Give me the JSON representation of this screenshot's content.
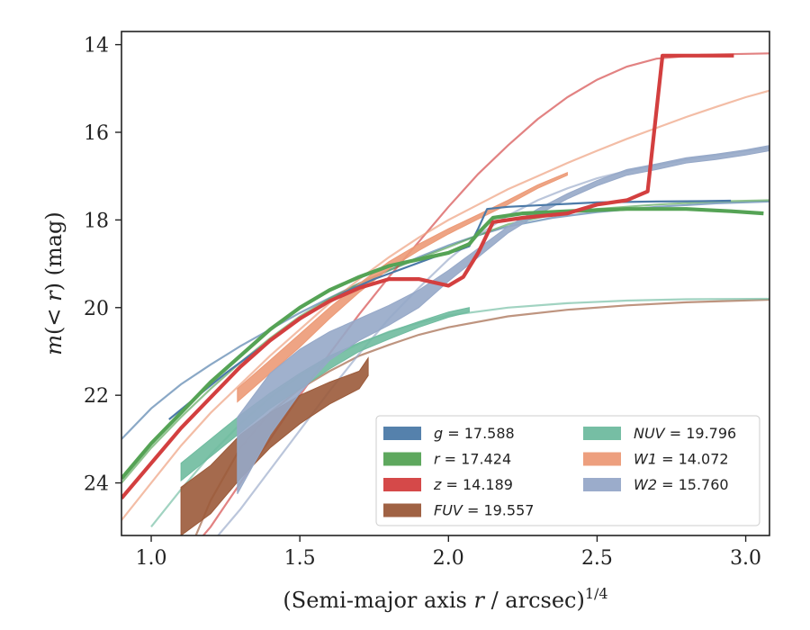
{
  "chart_data": {
    "type": "line",
    "xlabel": "(Semi-major axis r / arcsec)^1/4",
    "xlabel_parts": {
      "pre": "(Semi-major axis ",
      "var": "r",
      "post": " / arcsec)",
      "sup": "1/4"
    },
    "ylabel": "m(< r) (mag)",
    "ylabel_parts": {
      "pre": "m",
      "open": "(",
      "var": "< r",
      "close": ")",
      "post": " (mag)"
    },
    "xlim": [
      0.9,
      3.08
    ],
    "ylim": [
      25.2,
      13.7
    ],
    "y_inverted": true,
    "x_ticks": [
      1.0,
      1.5,
      2.0,
      2.5,
      3.0
    ],
    "x_tick_labels": [
      "1.0",
      "1.5",
      "2.0",
      "2.5",
      "3.0"
    ],
    "y_ticks": [
      14,
      16,
      18,
      20,
      22,
      24
    ],
    "y_tick_labels": [
      "14",
      "16",
      "18",
      "20",
      "22",
      "24"
    ],
    "grid": false,
    "legend_placement": "lower-right",
    "legend_columns": 2,
    "series": [
      {
        "name": "g = 17.588",
        "color": "#4c7aa8",
        "data": [
          [
            1.06,
            22.55
          ],
          [
            1.15,
            22.05
          ],
          [
            1.25,
            21.5
          ],
          [
            1.35,
            21.0
          ],
          [
            1.45,
            20.5
          ],
          [
            1.55,
            20.05
          ],
          [
            1.65,
            19.65
          ],
          [
            1.75,
            19.35
          ],
          [
            1.85,
            19.1
          ],
          [
            1.95,
            18.85
          ],
          [
            2.03,
            18.7
          ],
          [
            2.07,
            18.6
          ],
          [
            2.1,
            18.2
          ],
          [
            2.13,
            17.75
          ],
          [
            2.2,
            17.7
          ],
          [
            2.35,
            17.65
          ],
          [
            2.5,
            17.6
          ],
          [
            2.7,
            17.58
          ],
          [
            2.85,
            17.57
          ],
          [
            2.95,
            17.56
          ]
        ],
        "model": [
          [
            0.9,
            23.0
          ],
          [
            1.0,
            22.3
          ],
          [
            1.1,
            21.75
          ],
          [
            1.2,
            21.3
          ],
          [
            1.3,
            20.88
          ],
          [
            1.4,
            20.5
          ],
          [
            1.5,
            20.12
          ],
          [
            1.6,
            19.78
          ],
          [
            1.7,
            19.45
          ],
          [
            1.8,
            19.15
          ],
          [
            1.9,
            18.85
          ],
          [
            2.0,
            18.58
          ],
          [
            2.1,
            18.35
          ],
          [
            2.2,
            18.15
          ],
          [
            2.35,
            17.95
          ],
          [
            2.5,
            17.82
          ],
          [
            2.7,
            17.7
          ],
          [
            2.9,
            17.62
          ],
          [
            3.08,
            17.58
          ]
        ]
      },
      {
        "name": "r = 17.424",
        "color": "#55a355",
        "data": [
          [
            0.9,
            23.9
          ],
          [
            1.0,
            23.1
          ],
          [
            1.1,
            22.4
          ],
          [
            1.2,
            21.7
          ],
          [
            1.3,
            21.1
          ],
          [
            1.4,
            20.5
          ],
          [
            1.5,
            20.0
          ],
          [
            1.6,
            19.6
          ],
          [
            1.7,
            19.3
          ],
          [
            1.8,
            19.05
          ],
          [
            1.9,
            18.9
          ],
          [
            2.0,
            18.75
          ],
          [
            2.07,
            18.55
          ],
          [
            2.1,
            18.3
          ],
          [
            2.15,
            17.95
          ],
          [
            2.25,
            17.85
          ],
          [
            2.4,
            17.8
          ],
          [
            2.6,
            17.75
          ],
          [
            2.8,
            17.75
          ],
          [
            2.95,
            17.8
          ],
          [
            3.06,
            17.85
          ]
        ],
        "model": [
          [
            0.9,
            24.0
          ],
          [
            1.0,
            23.2
          ],
          [
            1.1,
            22.5
          ],
          [
            1.2,
            21.85
          ],
          [
            1.3,
            21.25
          ],
          [
            1.4,
            20.7
          ],
          [
            1.5,
            20.2
          ],
          [
            1.6,
            19.8
          ],
          [
            1.7,
            19.45
          ],
          [
            1.8,
            19.15
          ],
          [
            1.9,
            18.88
          ],
          [
            2.0,
            18.62
          ],
          [
            2.1,
            18.35
          ],
          [
            2.2,
            18.1
          ],
          [
            2.35,
            17.88
          ],
          [
            2.5,
            17.75
          ],
          [
            2.7,
            17.65
          ],
          [
            2.9,
            17.58
          ],
          [
            3.08,
            17.55
          ]
        ]
      },
      {
        "name": "z = 14.189",
        "color": "#d33f3f",
        "data": [
          [
            0.9,
            24.35
          ],
          [
            1.0,
            23.55
          ],
          [
            1.1,
            22.75
          ],
          [
            1.2,
            22.05
          ],
          [
            1.3,
            21.35
          ],
          [
            1.4,
            20.75
          ],
          [
            1.5,
            20.25
          ],
          [
            1.6,
            19.85
          ],
          [
            1.7,
            19.55
          ],
          [
            1.8,
            19.35
          ],
          [
            1.9,
            19.35
          ],
          [
            2.0,
            19.5
          ],
          [
            2.05,
            19.3
          ],
          [
            2.1,
            18.75
          ],
          [
            2.15,
            18.05
          ],
          [
            2.25,
            17.95
          ],
          [
            2.4,
            17.85
          ],
          [
            2.5,
            17.65
          ],
          [
            2.6,
            17.55
          ],
          [
            2.67,
            17.35
          ],
          [
            2.72,
            14.25
          ],
          [
            2.85,
            14.25
          ],
          [
            2.96,
            14.25
          ]
        ],
        "model": [
          [
            1.1,
            25.8
          ],
          [
            1.2,
            25.0
          ],
          [
            1.3,
            24.0
          ],
          [
            1.4,
            23.0
          ],
          [
            1.5,
            22.0
          ],
          [
            1.6,
            21.05
          ],
          [
            1.7,
            20.15
          ],
          [
            1.8,
            19.3
          ],
          [
            1.9,
            18.5
          ],
          [
            2.0,
            17.7
          ],
          [
            2.1,
            16.95
          ],
          [
            2.2,
            16.3
          ],
          [
            2.3,
            15.7
          ],
          [
            2.4,
            15.2
          ],
          [
            2.5,
            14.8
          ],
          [
            2.6,
            14.5
          ],
          [
            2.7,
            14.32
          ],
          [
            2.85,
            14.23
          ],
          [
            3.08,
            14.2
          ]
        ]
      },
      {
        "name": "FUV = 19.557",
        "color": "#9b5a3a",
        "band": [
          [
            1.1,
            24.1,
            25.2
          ],
          [
            1.2,
            23.6,
            24.7
          ],
          [
            1.3,
            22.9,
            23.9
          ],
          [
            1.4,
            22.4,
            23.2
          ],
          [
            1.5,
            22.0,
            22.65
          ],
          [
            1.6,
            21.7,
            22.2
          ],
          [
            1.7,
            21.45,
            21.85
          ],
          [
            1.73,
            21.15,
            21.55
          ]
        ],
        "model": [
          [
            1.15,
            25.2
          ],
          [
            1.2,
            24.4
          ],
          [
            1.3,
            23.2
          ],
          [
            1.4,
            22.4
          ],
          [
            1.5,
            21.85
          ],
          [
            1.6,
            21.45
          ],
          [
            1.7,
            21.1
          ],
          [
            1.8,
            20.85
          ],
          [
            1.9,
            20.62
          ],
          [
            2.0,
            20.45
          ],
          [
            2.2,
            20.2
          ],
          [
            2.4,
            20.05
          ],
          [
            2.6,
            19.95
          ],
          [
            2.8,
            19.88
          ],
          [
            3.08,
            19.82
          ]
        ]
      },
      {
        "name": "NUV = 19.796",
        "color": "#6fbb9f",
        "band": [
          [
            1.1,
            23.55,
            23.95
          ],
          [
            1.2,
            23.0,
            23.4
          ],
          [
            1.3,
            22.45,
            22.85
          ],
          [
            1.4,
            21.95,
            22.3
          ],
          [
            1.5,
            21.5,
            21.85
          ],
          [
            1.6,
            21.1,
            21.4
          ],
          [
            1.7,
            20.8,
            21.0
          ],
          [
            1.8,
            20.55,
            20.72
          ],
          [
            1.9,
            20.32,
            20.45
          ],
          [
            2.0,
            20.1,
            20.22
          ],
          [
            2.07,
            20.0,
            20.1
          ]
        ],
        "model": [
          [
            1.0,
            25.0
          ],
          [
            1.1,
            24.15
          ],
          [
            1.2,
            23.35
          ],
          [
            1.3,
            22.65
          ],
          [
            1.4,
            22.05
          ],
          [
            1.5,
            21.55
          ],
          [
            1.6,
            21.15
          ],
          [
            1.7,
            20.82
          ],
          [
            1.8,
            20.55
          ],
          [
            1.9,
            20.35
          ],
          [
            2.0,
            20.18
          ],
          [
            2.2,
            20.0
          ],
          [
            2.4,
            19.9
          ],
          [
            2.6,
            19.84
          ],
          [
            2.8,
            19.81
          ],
          [
            3.08,
            19.8
          ]
        ]
      },
      {
        "name": "W1 = 14.072",
        "color": "#ec9a77",
        "band": [
          [
            1.29,
            21.85,
            22.15
          ],
          [
            1.4,
            21.2,
            21.5
          ],
          [
            1.5,
            20.6,
            20.9
          ],
          [
            1.6,
            20.0,
            20.25
          ],
          [
            1.7,
            19.45,
            19.65
          ],
          [
            1.8,
            18.95,
            19.12
          ],
          [
            1.9,
            18.55,
            18.7
          ],
          [
            2.0,
            18.2,
            18.32
          ],
          [
            2.1,
            17.88,
            17.98
          ],
          [
            2.2,
            17.55,
            17.65
          ],
          [
            2.3,
            17.2,
            17.28
          ],
          [
            2.4,
            16.92,
            16.98
          ]
        ],
        "model": [
          [
            0.9,
            24.85
          ],
          [
            1.0,
            24.0
          ],
          [
            1.1,
            23.15
          ],
          [
            1.2,
            22.4
          ],
          [
            1.3,
            21.75
          ],
          [
            1.4,
            21.1
          ],
          [
            1.5,
            20.5
          ],
          [
            1.6,
            19.9
          ],
          [
            1.7,
            19.35
          ],
          [
            1.8,
            18.85
          ],
          [
            1.9,
            18.4
          ],
          [
            2.0,
            18.0
          ],
          [
            2.1,
            17.65
          ],
          [
            2.2,
            17.3
          ],
          [
            2.3,
            17.0
          ],
          [
            2.4,
            16.7
          ],
          [
            2.5,
            16.42
          ],
          [
            2.6,
            16.15
          ],
          [
            2.7,
            15.9
          ],
          [
            2.8,
            15.65
          ],
          [
            2.9,
            15.42
          ],
          [
            3.0,
            15.2
          ],
          [
            3.08,
            15.05
          ]
        ]
      },
      {
        "name": "W2 = 15.760",
        "color": "#96a8c8",
        "band": [
          [
            1.29,
            22.5,
            24.25
          ],
          [
            1.4,
            21.5,
            22.9
          ],
          [
            1.5,
            20.95,
            21.95
          ],
          [
            1.6,
            20.55,
            21.2
          ],
          [
            1.7,
            20.25,
            20.75
          ],
          [
            1.8,
            19.95,
            20.4
          ],
          [
            1.9,
            19.6,
            20.0
          ],
          [
            2.0,
            19.15,
            19.4
          ],
          [
            2.1,
            18.65,
            18.85
          ],
          [
            2.2,
            18.15,
            18.3
          ],
          [
            2.3,
            17.75,
            17.88
          ],
          [
            2.4,
            17.4,
            17.52
          ],
          [
            2.5,
            17.1,
            17.22
          ],
          [
            2.6,
            16.85,
            16.98
          ],
          [
            2.7,
            16.72,
            16.85
          ],
          [
            2.8,
            16.58,
            16.7
          ],
          [
            2.9,
            16.5,
            16.62
          ],
          [
            3.0,
            16.4,
            16.52
          ],
          [
            3.08,
            16.3,
            16.42
          ]
        ],
        "model": [
          [
            1.2,
            25.4
          ],
          [
            1.3,
            24.6
          ],
          [
            1.4,
            23.7
          ],
          [
            1.5,
            22.8
          ],
          [
            1.6,
            21.9
          ],
          [
            1.7,
            21.05
          ],
          [
            1.8,
            20.25
          ],
          [
            1.9,
            19.55
          ],
          [
            2.0,
            18.9
          ],
          [
            2.1,
            18.35
          ],
          [
            2.2,
            17.9
          ],
          [
            2.3,
            17.55
          ],
          [
            2.4,
            17.28
          ],
          [
            2.5,
            17.05
          ],
          [
            2.6,
            16.88
          ],
          [
            2.7,
            16.75
          ],
          [
            2.8,
            16.62
          ],
          [
            2.9,
            16.52
          ],
          [
            3.0,
            16.42
          ],
          [
            3.08,
            16.35
          ]
        ]
      }
    ],
    "legend": [
      {
        "prefix": "g",
        "value": " = 17.588",
        "color": "#4c7aa8"
      },
      {
        "prefix": "r",
        "value": " = 17.424",
        "color": "#55a355"
      },
      {
        "prefix": "z",
        "value": " = 14.189",
        "color": "#d33f3f"
      },
      {
        "prefix": "FUV",
        "value": " = 19.557",
        "color": "#9b5a3a"
      },
      {
        "prefix": "NUV",
        "value": " = 19.796",
        "color": "#6fbb9f"
      },
      {
        "prefix": "W1",
        "value": " = 14.072",
        "color": "#ec9a77"
      },
      {
        "prefix": "W2",
        "value": " = 15.760",
        "color": "#96a8c8"
      }
    ]
  }
}
